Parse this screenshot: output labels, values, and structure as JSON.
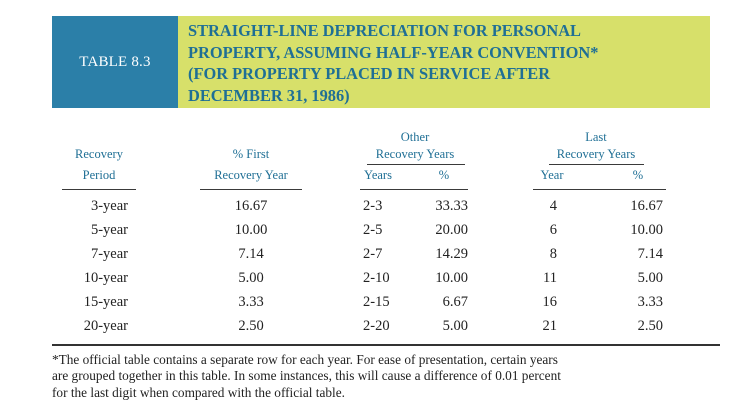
{
  "table": {
    "label": "TABLE 8.3",
    "title_lines": [
      "STRAIGHT-LINE DEPRECIATION FOR PERSONAL",
      "PROPERTY, ASSUMING HALF-YEAR CONVENTION*",
      "(FOR PROPERTY PLACED IN SERVICE AFTER",
      "DECEMBER 31, 1986)"
    ]
  },
  "headers": {
    "recovery_line1": "Recovery",
    "recovery_line2": "Period",
    "first_line1": "% First",
    "first_line2": "Recovery Year",
    "other_group_line1": "Other",
    "other_group_line2": "Recovery Years",
    "other_years": "Years",
    "other_pct": "%",
    "last_group_line1": "Last",
    "last_group_line2": "Recovery Years",
    "last_year": "Year",
    "last_pct": "%"
  },
  "rows": [
    {
      "period": "3-year",
      "first": "16.67",
      "other_years": "2-3",
      "other_pct": "33.33",
      "last_year": "4",
      "last_pct": "16.67"
    },
    {
      "period": "5-year",
      "first": "10.00",
      "other_years": "2-5",
      "other_pct": "20.00",
      "last_year": "6",
      "last_pct": "10.00"
    },
    {
      "period": "7-year",
      "first": "7.14",
      "other_years": "2-7",
      "other_pct": "14.29",
      "last_year": "8",
      "last_pct": "7.14"
    },
    {
      "period": "10-year",
      "first": "5.00",
      "other_years": "2-10",
      "other_pct": "10.00",
      "last_year": "11",
      "last_pct": "5.00"
    },
    {
      "period": "15-year",
      "first": "3.33",
      "other_years": "2-15",
      "other_pct": "6.67",
      "last_year": "16",
      "last_pct": "3.33"
    },
    {
      "period": "20-year",
      "first": "2.50",
      "other_years": "2-20",
      "other_pct": "5.00",
      "last_year": "21",
      "last_pct": "2.50"
    }
  ],
  "footnote_lines": [
    "*The official table contains a separate row for each year. For ease of presentation, certain years",
    "are grouped together in this table. In some instances, this will cause a difference of 0.01 percent",
    "for the last digit when compared with the official table."
  ],
  "colors": {
    "label_bg": "#2b7fa8",
    "title_bg": "#d7e06a",
    "header_text": "#1f6f95"
  }
}
